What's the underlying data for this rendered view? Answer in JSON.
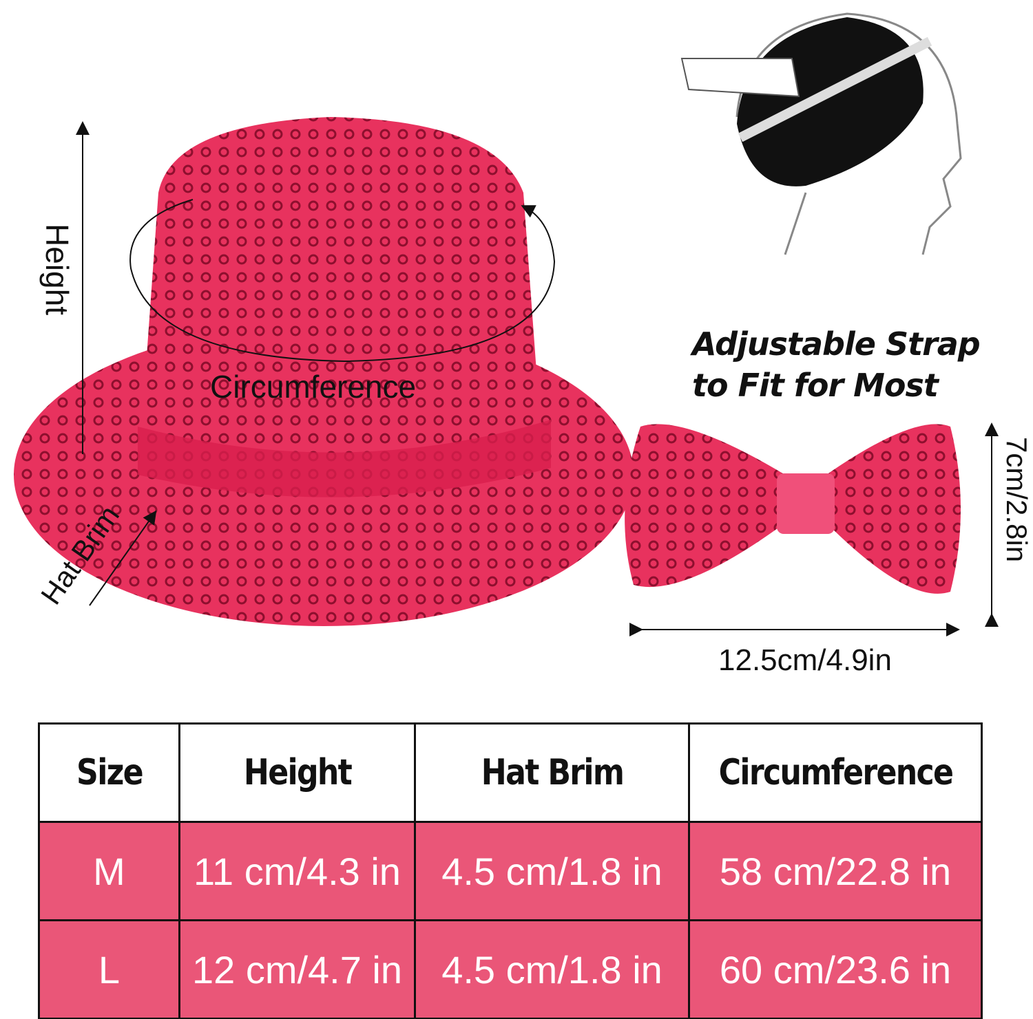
{
  "hat_labels": {
    "height": "Height",
    "circumference": "Circumference",
    "hat_brim": "Hat Brim"
  },
  "strap_text": {
    "line1": "Adjustable Strap",
    "line2": "to Fit for Most"
  },
  "bow_dimensions": {
    "height": "7cm/2.8in",
    "width": "12.5cm/4.9in"
  },
  "colors": {
    "product_pink": "#E8325E",
    "table_pink": "#EA5678"
  },
  "size_table": {
    "headers": [
      "Size",
      "Height",
      "Hat Brim",
      "Circumference"
    ],
    "rows": [
      [
        "M",
        "11 cm/4.3 in",
        "4.5 cm/1.8 in",
        "58 cm/22.8 in"
      ],
      [
        "L",
        "12 cm/4.7 in",
        "4.5 cm/1.8 in",
        "60 cm/23.6 in"
      ]
    ]
  }
}
